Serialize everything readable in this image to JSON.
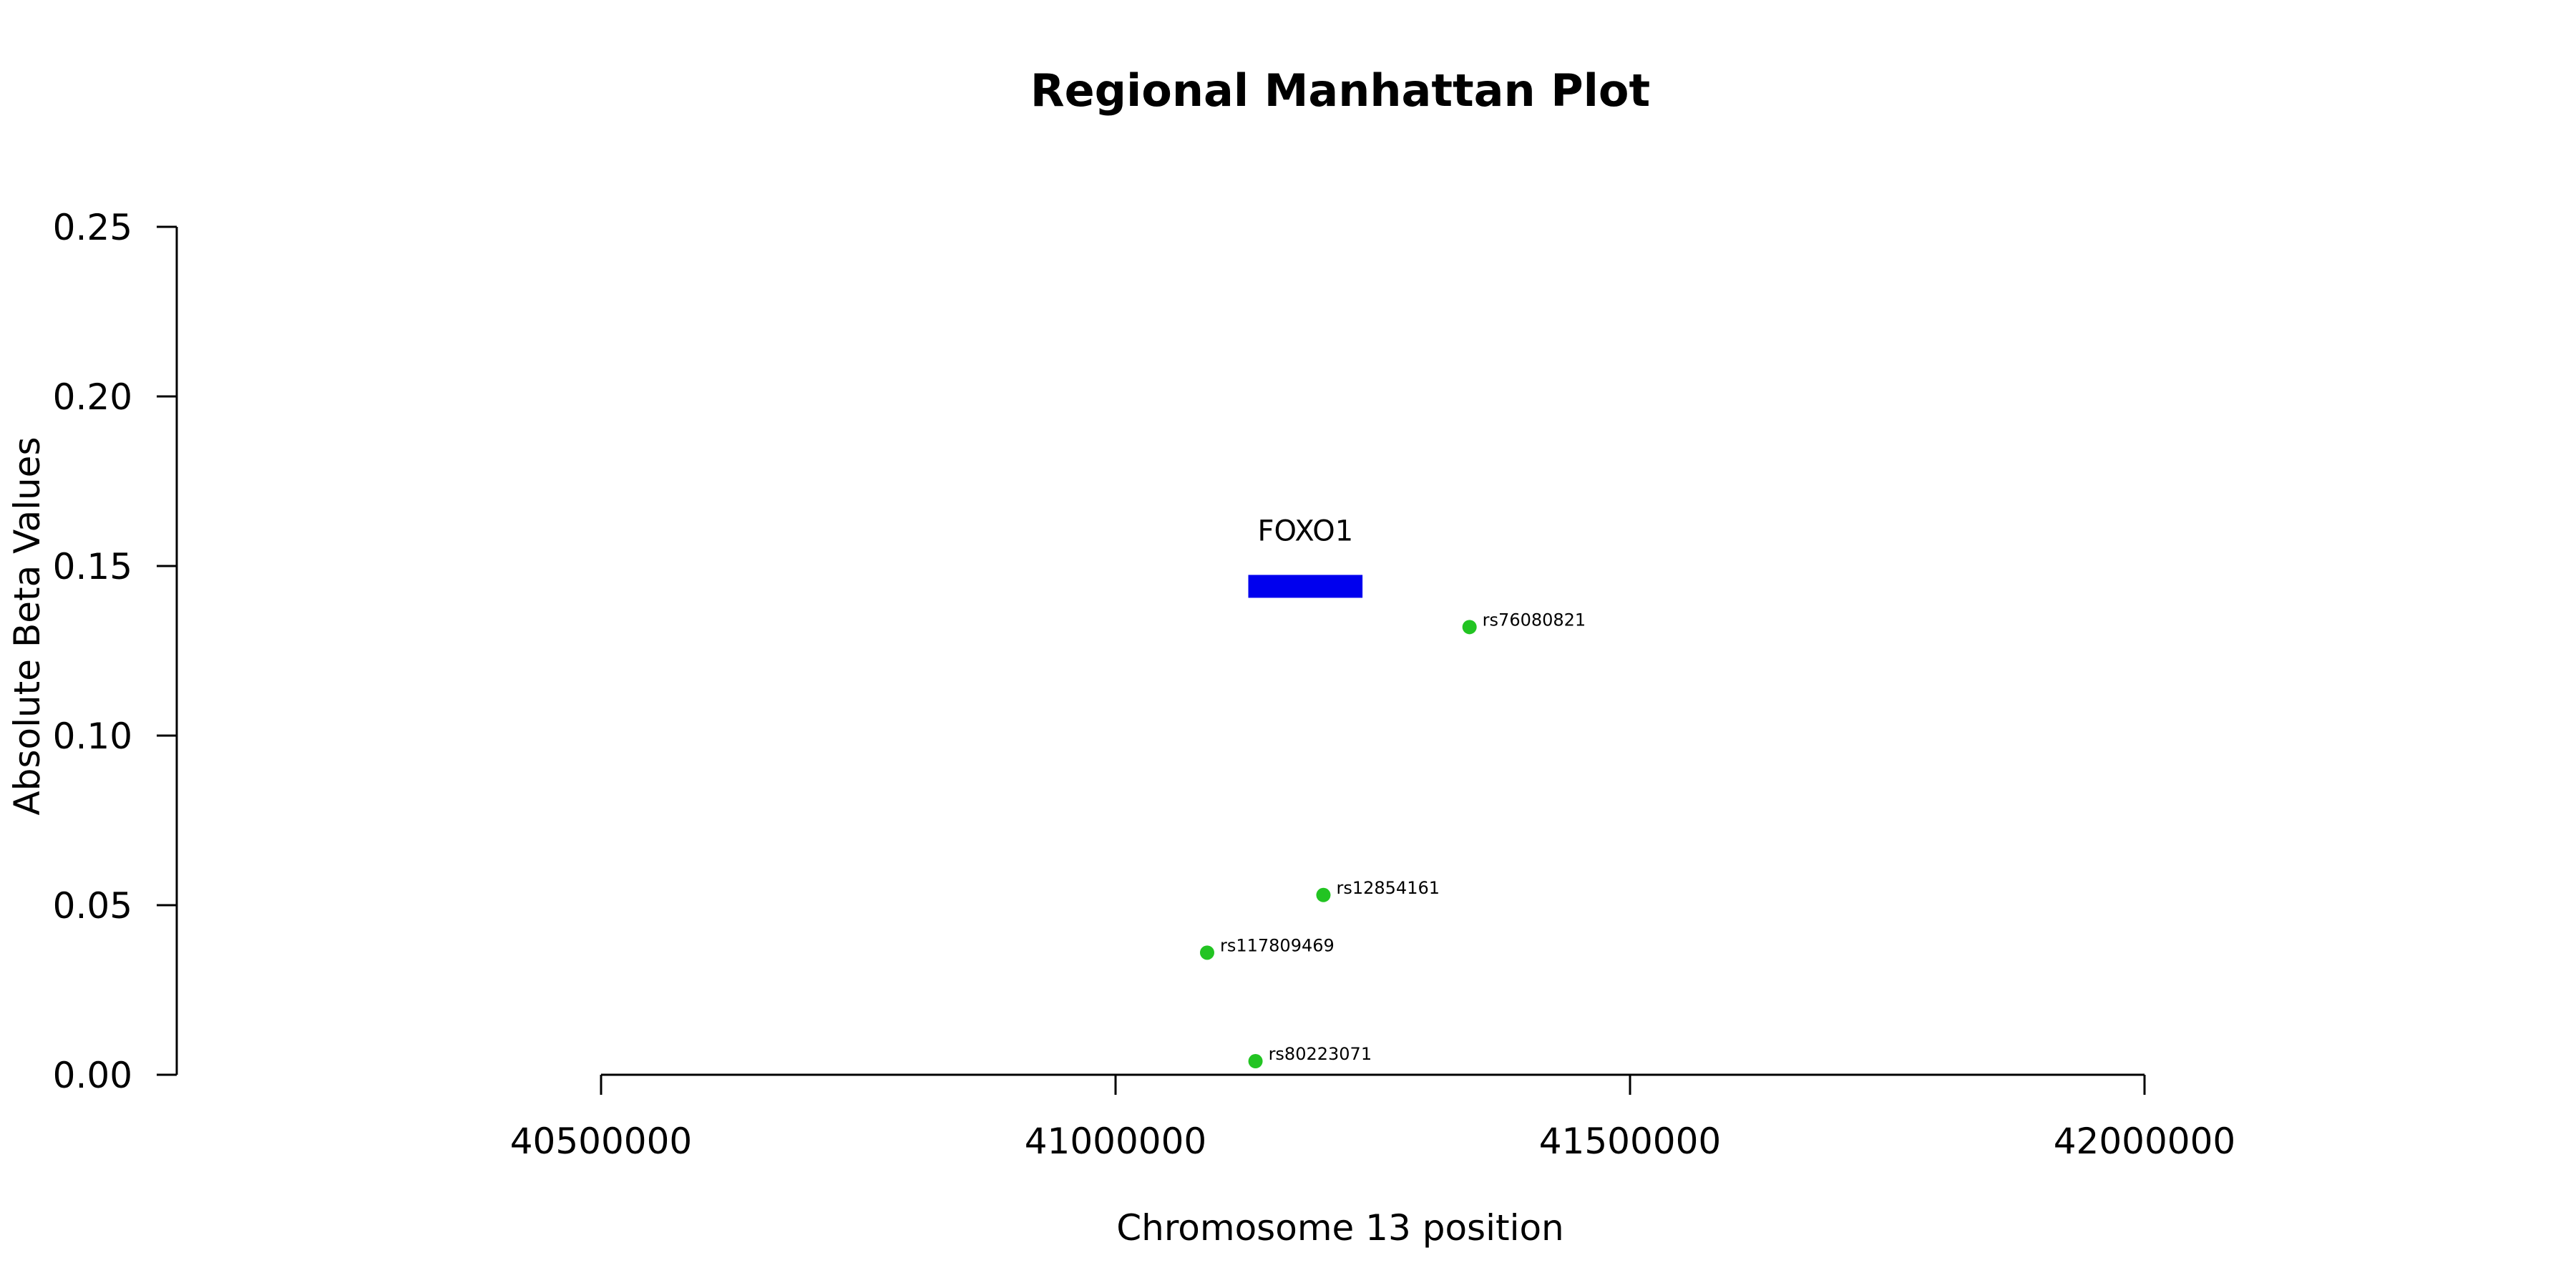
{
  "chart_data": {
    "type": "scatter",
    "title": "Regional Manhattan Plot",
    "xlabel": "Chromosome 13 position",
    "ylabel": "Absolute Beta Values",
    "xlim": [
      40500000,
      42000000
    ],
    "ylim": [
      0,
      0.25
    ],
    "x_ticks": [
      40500000,
      41000000,
      41500000,
      42000000
    ],
    "x_tick_labels": [
      "40500000",
      "41000000",
      "41500000",
      "42000000"
    ],
    "y_ticks": [
      0,
      0.05,
      0.1,
      0.15,
      0.2,
      0.25
    ],
    "y_tick_labels": [
      "0.00",
      "0.05",
      "0.10",
      "0.15",
      "0.20",
      "0.25"
    ],
    "grid": false,
    "point_color": "#22c422",
    "gene_color": "#0000ee",
    "points": [
      {
        "label": "rs76080821",
        "x": 41344000,
        "y": 0.132
      },
      {
        "label": "rs12854161",
        "x": 41202000,
        "y": 0.053
      },
      {
        "label": "rs117809469",
        "x": 41089000,
        "y": 0.036
      },
      {
        "label": "rs80223071",
        "x": 41136000,
        "y": 0.004
      }
    ],
    "genes": [
      {
        "name": "FOXO1",
        "start": 41129000,
        "end": 41240000,
        "y": 0.144
      }
    ]
  }
}
